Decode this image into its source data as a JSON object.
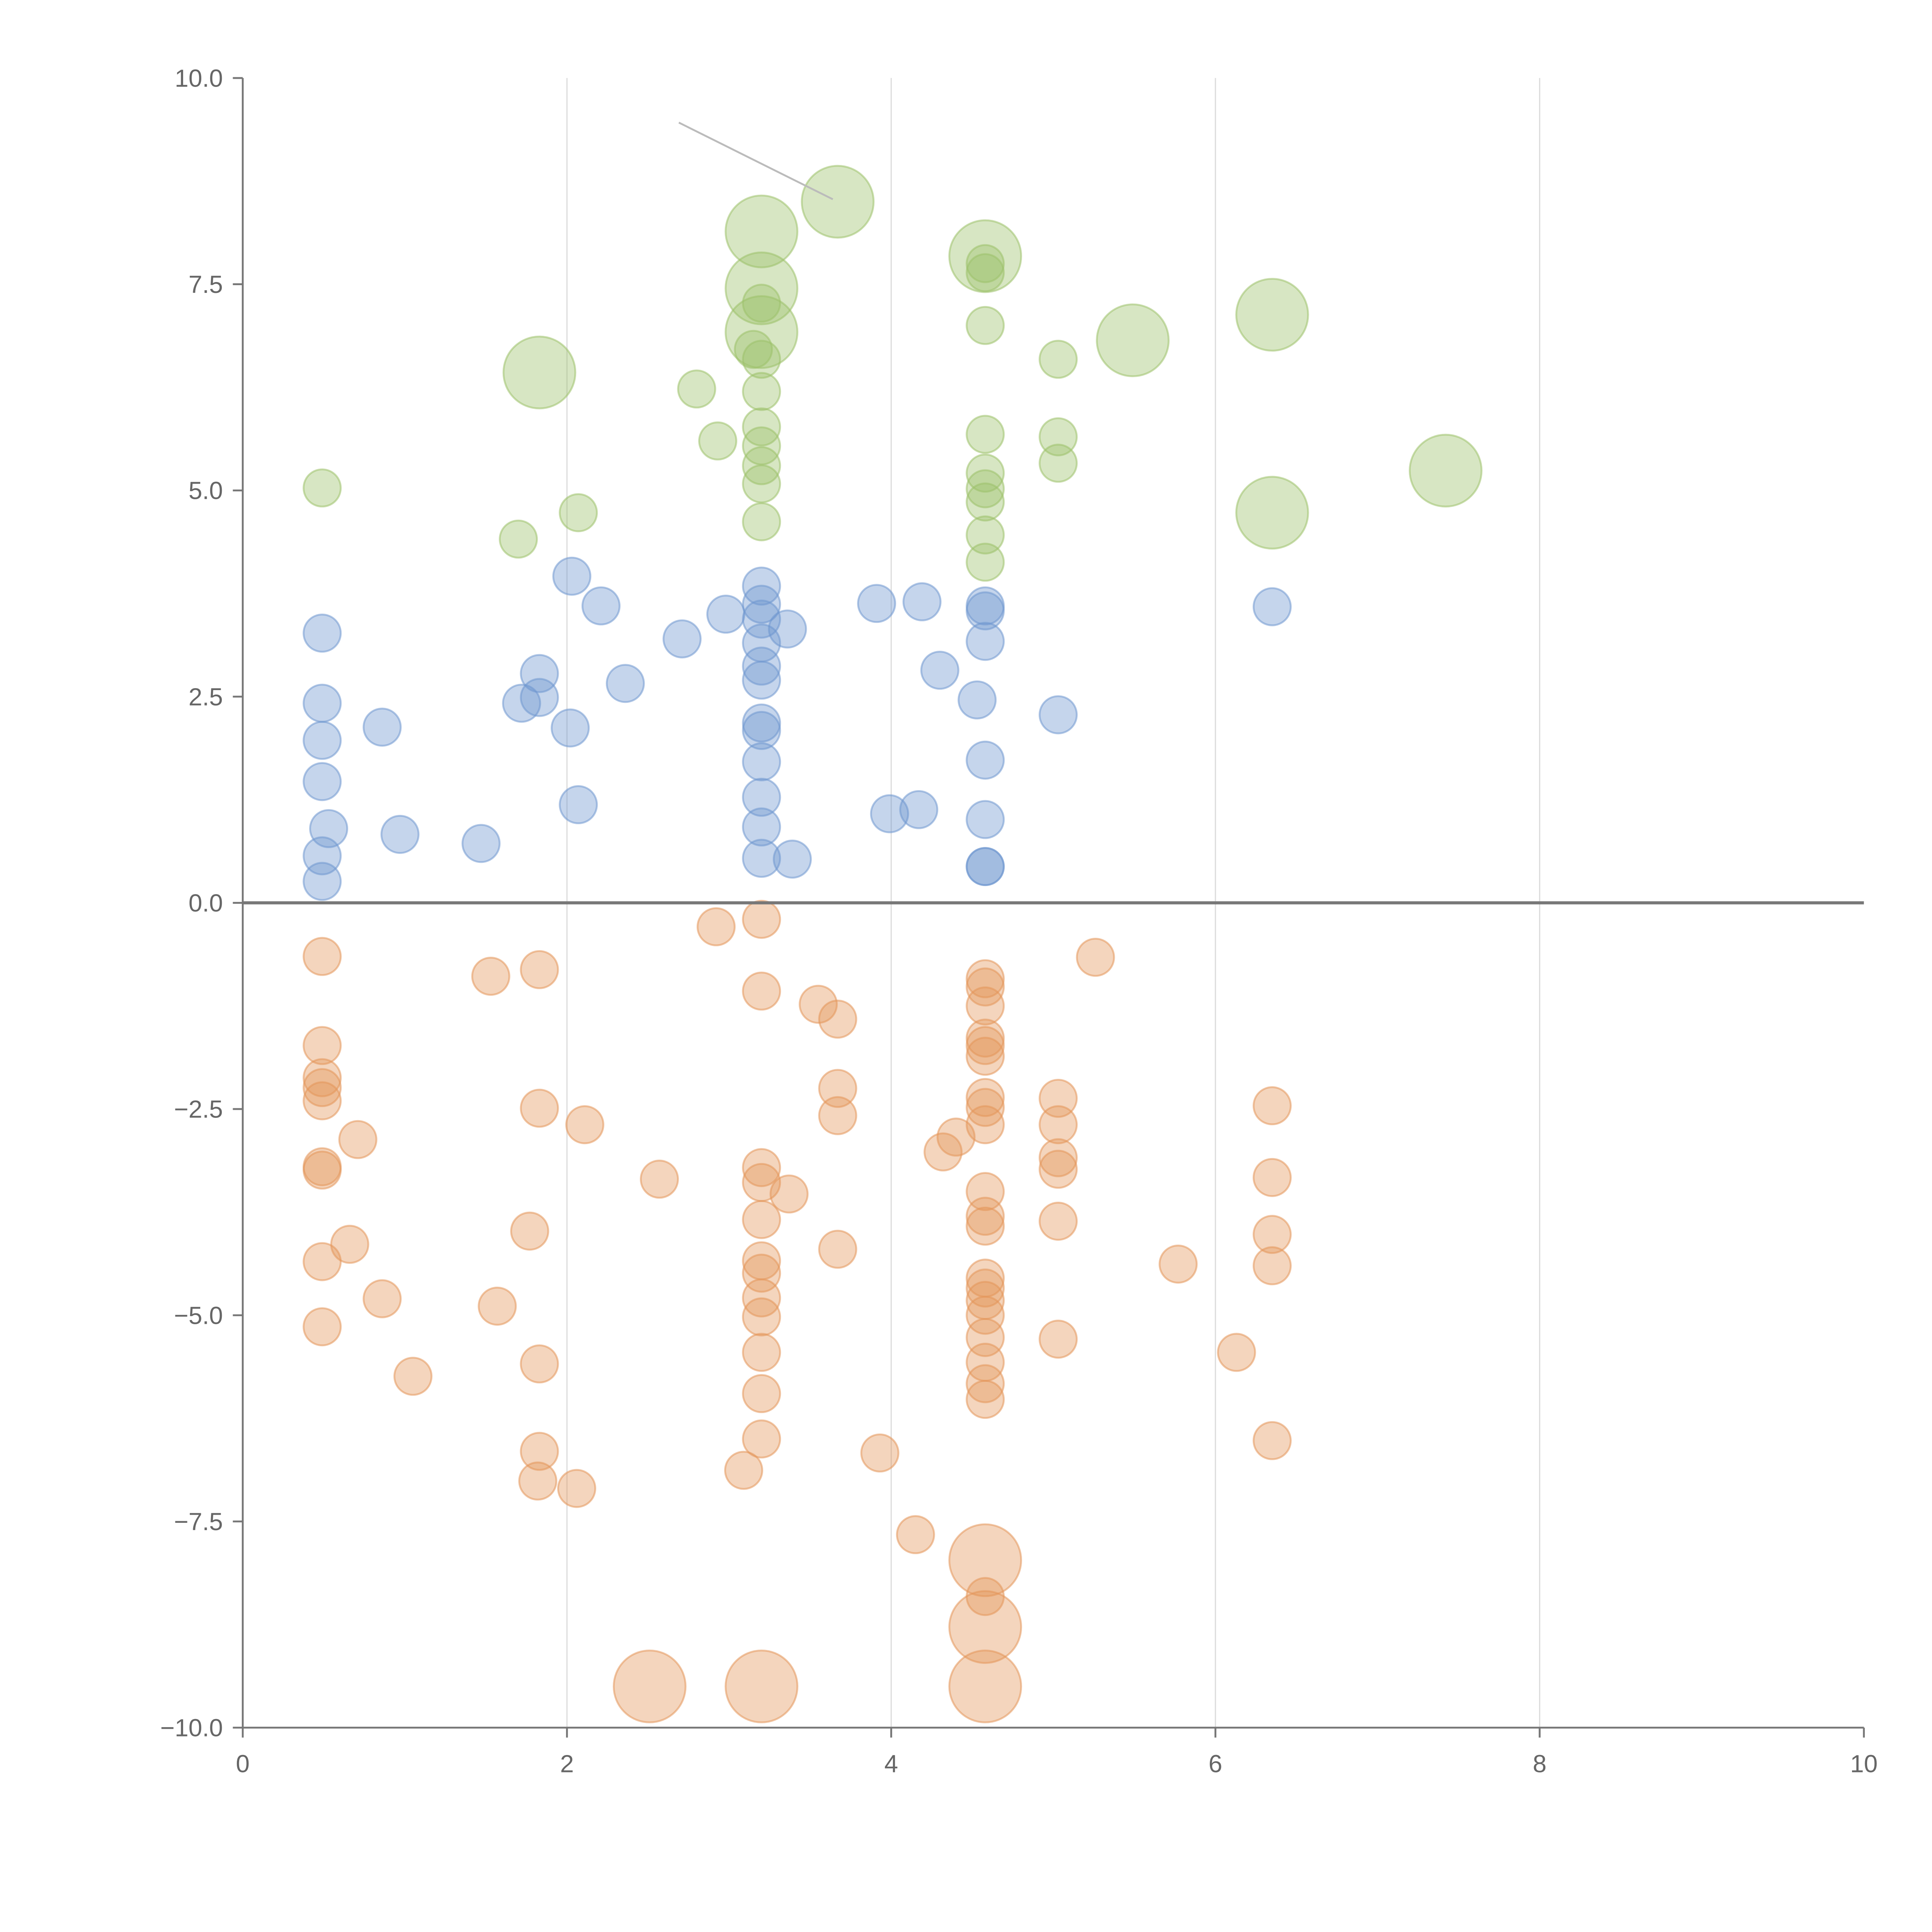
{
  "chart_data": {
    "type": "scatter",
    "title": "",
    "xlabel": "",
    "ylabel": "",
    "xlim": [
      0,
      10
    ],
    "ylim": [
      -10,
      10
    ],
    "grid": "vertical",
    "legend": "none",
    "x_ticks": [
      "0",
      "2",
      "4",
      "6",
      "8",
      "10"
    ],
    "x_tick_values": [
      0,
      2,
      4,
      6,
      8,
      10
    ],
    "y_ticks": [
      "10.0",
      "7.5",
      "5.0",
      "2.5",
      "0.0",
      "−2.5",
      "−5.0",
      "−7.5",
      "−10.0"
    ],
    "y_tick_values": [
      10,
      7.5,
      5,
      2.5,
      0,
      -2.5,
      -5,
      -7.5,
      -10
    ],
    "reference_line_y": 0,
    "annotation_line": [
      [
        2.69,
        9.46
      ],
      [
        3.64,
        8.53
      ]
    ],
    "point_format": [
      "x",
      "y",
      "size"
    ],
    "series": [
      {
        "name": "green",
        "color": "#9cc16a",
        "points": [
          [
            0.49,
            5.03,
            1
          ],
          [
            1.7,
            4.41,
            1
          ],
          [
            2.07,
            4.73,
            1
          ],
          [
            1.83,
            6.43,
            2
          ],
          [
            2.8,
            6.23,
            1
          ],
          [
            2.93,
            5.6,
            1
          ],
          [
            3.2,
            8.14,
            2
          ],
          [
            3.2,
            7.45,
            2
          ],
          [
            3.2,
            6.92,
            2
          ],
          [
            3.2,
            7.27,
            1
          ],
          [
            3.15,
            6.71,
            1
          ],
          [
            3.2,
            6.59,
            1
          ],
          [
            3.2,
            6.2,
            1
          ],
          [
            3.2,
            5.77,
            1
          ],
          [
            3.2,
            5.54,
            1
          ],
          [
            3.2,
            5.3,
            1
          ],
          [
            3.2,
            5.08,
            1
          ],
          [
            3.2,
            4.62,
            1
          ],
          [
            3.67,
            8.5,
            2
          ],
          [
            4.58,
            7.84,
            2
          ],
          [
            4.58,
            7.75,
            1
          ],
          [
            4.58,
            7.64,
            1
          ],
          [
            4.58,
            7.0,
            1
          ],
          [
            4.58,
            5.68,
            1
          ],
          [
            4.58,
            5.21,
            1
          ],
          [
            4.58,
            5.02,
            1
          ],
          [
            4.58,
            4.86,
            1
          ],
          [
            4.58,
            4.46,
            1
          ],
          [
            4.58,
            4.13,
            1
          ],
          [
            5.03,
            6.59,
            1
          ],
          [
            5.03,
            5.65,
            1
          ],
          [
            5.03,
            5.33,
            1
          ],
          [
            5.49,
            6.82,
            2
          ],
          [
            6.35,
            7.13,
            2
          ],
          [
            6.35,
            4.73,
            2
          ],
          [
            7.42,
            5.24,
            2
          ]
        ]
      },
      {
        "name": "blue",
        "color": "#6f97cf",
        "points": [
          [
            0.49,
            3.27,
            1
          ],
          [
            0.49,
            2.42,
            1
          ],
          [
            0.49,
            1.97,
            1
          ],
          [
            0.49,
            1.47,
            1
          ],
          [
            0.53,
            0.9,
            1
          ],
          [
            0.49,
            0.57,
            1
          ],
          [
            0.49,
            0.26,
            1
          ],
          [
            0.86,
            2.13,
            1
          ],
          [
            0.97,
            0.83,
            1
          ],
          [
            1.47,
            0.72,
            1
          ],
          [
            1.72,
            2.42,
            1
          ],
          [
            1.83,
            2.78,
            1
          ],
          [
            1.83,
            2.49,
            1
          ],
          [
            2.02,
            2.12,
            1
          ],
          [
            2.03,
            3.96,
            1
          ],
          [
            2.07,
            1.19,
            1
          ],
          [
            2.21,
            3.6,
            1
          ],
          [
            2.36,
            2.66,
            1
          ],
          [
            2.71,
            3.2,
            1
          ],
          [
            2.98,
            3.5,
            1
          ],
          [
            3.2,
            3.84,
            1
          ],
          [
            3.2,
            3.62,
            1
          ],
          [
            3.2,
            3.44,
            1
          ],
          [
            3.2,
            3.15,
            1
          ],
          [
            3.2,
            2.87,
            1
          ],
          [
            3.2,
            2.7,
            1
          ],
          [
            3.2,
            2.18,
            1
          ],
          [
            3.2,
            2.09,
            1
          ],
          [
            3.2,
            1.71,
            1
          ],
          [
            3.2,
            1.28,
            1
          ],
          [
            3.2,
            0.92,
            1
          ],
          [
            3.2,
            0.54,
            1
          ],
          [
            3.36,
            3.32,
            1
          ],
          [
            3.39,
            0.53,
            1
          ],
          [
            3.91,
            3.63,
            1
          ],
          [
            3.99,
            1.08,
            1
          ],
          [
            4.17,
            1.13,
            1
          ],
          [
            4.19,
            3.65,
            1
          ],
          [
            4.3,
            2.82,
            1
          ],
          [
            4.53,
            2.46,
            1
          ],
          [
            4.58,
            3.6,
            1
          ],
          [
            4.58,
            3.54,
            1
          ],
          [
            4.58,
            3.17,
            1
          ],
          [
            4.58,
            1.73,
            1
          ],
          [
            4.58,
            1.01,
            1
          ],
          [
            4.58,
            0.44,
            1
          ],
          [
            4.58,
            0.44,
            1
          ],
          [
            5.03,
            2.28,
            1
          ],
          [
            6.35,
            3.59,
            1
          ]
        ]
      },
      {
        "name": "orange",
        "color": "#e3955a",
        "points": [
          [
            0.49,
            -0.65,
            1
          ],
          [
            0.49,
            -1.73,
            1
          ],
          [
            0.49,
            -2.12,
            1
          ],
          [
            0.49,
            -2.24,
            1
          ],
          [
            0.49,
            -2.4,
            1
          ],
          [
            0.49,
            -3.2,
            1
          ],
          [
            0.49,
            -3.24,
            1
          ],
          [
            0.49,
            -4.35,
            1
          ],
          [
            0.49,
            -5.14,
            1
          ],
          [
            0.66,
            -4.14,
            1
          ],
          [
            0.71,
            -2.87,
            1
          ],
          [
            0.86,
            -4.8,
            1
          ],
          [
            1.05,
            -5.74,
            1
          ],
          [
            1.53,
            -0.89,
            1
          ],
          [
            1.57,
            -4.89,
            1
          ],
          [
            1.77,
            -3.98,
            1
          ],
          [
            1.83,
            -0.81,
            1
          ],
          [
            1.83,
            -2.49,
            1
          ],
          [
            1.83,
            -5.59,
            1
          ],
          [
            1.83,
            -6.65,
            1
          ],
          [
            1.82,
            -7.01,
            1
          ],
          [
            2.06,
            -7.1,
            1
          ],
          [
            2.11,
            -2.69,
            1
          ],
          [
            2.51,
            -9.5,
            2
          ],
          [
            2.57,
            -3.35,
            1
          ],
          [
            2.92,
            -0.29,
            1
          ],
          [
            3.09,
            -6.88,
            1
          ],
          [
            3.2,
            -0.2,
            1
          ],
          [
            3.2,
            -1.07,
            1
          ],
          [
            3.2,
            -3.21,
            1
          ],
          [
            3.2,
            -3.39,
            1
          ],
          [
            3.2,
            -3.84,
            1
          ],
          [
            3.2,
            -4.34,
            1
          ],
          [
            3.2,
            -4.49,
            1
          ],
          [
            3.2,
            -4.79,
            1
          ],
          [
            3.2,
            -5.02,
            1
          ],
          [
            3.2,
            -5.45,
            1
          ],
          [
            3.2,
            -5.95,
            1
          ],
          [
            3.2,
            -6.5,
            1
          ],
          [
            3.2,
            -9.5,
            2
          ],
          [
            3.37,
            -3.53,
            1
          ],
          [
            3.55,
            -1.23,
            1
          ],
          [
            3.67,
            -1.41,
            1
          ],
          [
            3.67,
            -2.25,
            1
          ],
          [
            3.67,
            -2.58,
            1
          ],
          [
            3.67,
            -4.2,
            1
          ],
          [
            3.93,
            -6.67,
            1
          ],
          [
            4.15,
            -7.66,
            1
          ],
          [
            4.32,
            -3.02,
            1
          ],
          [
            4.4,
            -2.84,
            1
          ],
          [
            4.58,
            -0.92,
            1
          ],
          [
            4.58,
            -1.02,
            1
          ],
          [
            4.58,
            -1.25,
            1
          ],
          [
            4.58,
            -1.64,
            1
          ],
          [
            4.58,
            -1.73,
            1
          ],
          [
            4.58,
            -1.86,
            1
          ],
          [
            4.58,
            -2.36,
            1
          ],
          [
            4.58,
            -2.48,
            1
          ],
          [
            4.58,
            -2.69,
            1
          ],
          [
            4.58,
            -3.5,
            1
          ],
          [
            4.58,
            -3.8,
            1
          ],
          [
            4.58,
            -3.92,
            1
          ],
          [
            4.58,
            -4.55,
            1
          ],
          [
            4.58,
            -4.67,
            1
          ],
          [
            4.58,
            -4.82,
            1
          ],
          [
            4.58,
            -5.0,
            1
          ],
          [
            4.58,
            -5.27,
            1
          ],
          [
            4.58,
            -5.57,
            1
          ],
          [
            4.58,
            -5.83,
            1
          ],
          [
            4.58,
            -6.02,
            1
          ],
          [
            4.58,
            -7.97,
            2
          ],
          [
            4.58,
            -8.41,
            1
          ],
          [
            4.58,
            -8.78,
            2
          ],
          [
            4.58,
            -9.5,
            2
          ],
          [
            5.03,
            -2.37,
            1
          ],
          [
            5.03,
            -2.69,
            1
          ],
          [
            5.03,
            -3.09,
            1
          ],
          [
            5.03,
            -3.23,
            1
          ],
          [
            5.03,
            -3.86,
            1
          ],
          [
            5.03,
            -5.29,
            1
          ],
          [
            5.26,
            -0.66,
            1
          ],
          [
            5.77,
            -4.38,
            1
          ],
          [
            6.13,
            -5.45,
            1
          ],
          [
            6.35,
            -2.46,
            1
          ],
          [
            6.35,
            -3.33,
            1
          ],
          [
            6.35,
            -4.02,
            1
          ],
          [
            6.35,
            -4.4,
            1
          ],
          [
            6.35,
            -6.52,
            1
          ]
        ]
      }
    ]
  }
}
